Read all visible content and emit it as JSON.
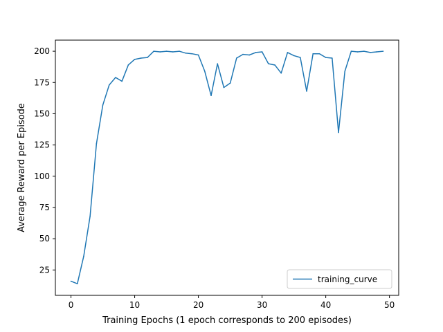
{
  "chart_data": {
    "type": "line",
    "xlabel": "Training Epochs (1 epoch corresponds to 200 episodes)",
    "ylabel": "Average Reward per Episode",
    "xlim": [
      -2.45,
      51.45
    ],
    "ylim": [
      4.7,
      208.9
    ],
    "xticks": [
      0,
      10,
      20,
      30,
      40,
      50
    ],
    "yticks": [
      25,
      50,
      75,
      100,
      125,
      150,
      175,
      200
    ],
    "grid": false,
    "legend_position": "lower-right",
    "series": [
      {
        "name": "training_curve",
        "color": "#1f77b4",
        "x": [
          0,
          1,
          2,
          3,
          4,
          5,
          6,
          7,
          8,
          9,
          10,
          11,
          12,
          13,
          14,
          15,
          16,
          17,
          18,
          19,
          20,
          21,
          22,
          23,
          24,
          25,
          26,
          27,
          28,
          29,
          30,
          31,
          32,
          33,
          34,
          35,
          36,
          37,
          38,
          39,
          40,
          41,
          42,
          43,
          44,
          45,
          46,
          47,
          48,
          49
        ],
        "y": [
          16,
          14,
          36,
          68,
          126,
          157,
          173,
          179,
          176,
          189,
          193.5,
          194.5,
          195,
          200,
          199.5,
          200,
          199.5,
          200,
          198.5,
          198,
          197,
          184,
          164.5,
          190,
          171,
          174.5,
          194.5,
          197.5,
          197,
          199,
          199.5,
          190,
          189,
          182.5,
          199,
          196.5,
          195,
          168,
          198,
          198,
          195,
          194.5,
          135,
          184,
          200,
          199.5,
          200,
          199,
          199.5,
          200
        ]
      }
    ]
  }
}
